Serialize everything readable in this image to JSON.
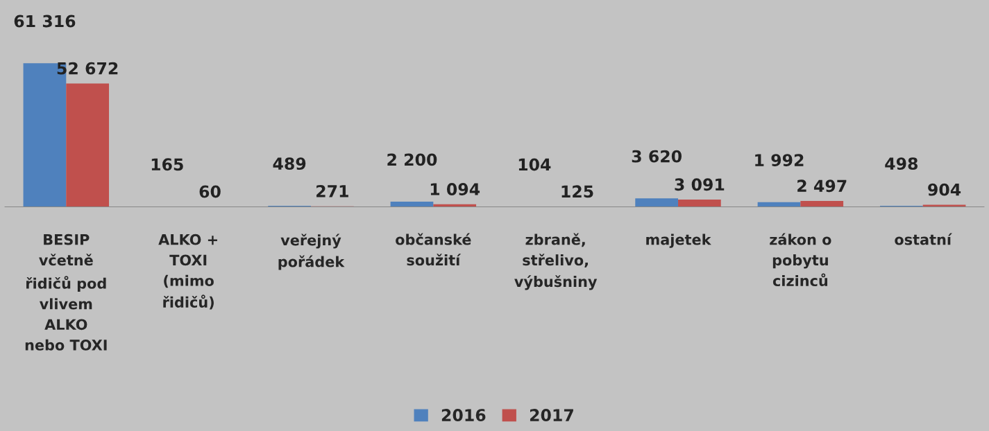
{
  "chart_data": {
    "type": "bar",
    "categories": [
      "BESIP\nvčetně\nřidičů pod\nvlivem\nALKO\nnebo TOXI",
      "ALKO +\nTOXI\n(mimo\nřidičů)",
      "veřejný\npořádek",
      "občanské\nsoužití",
      "zbraně,\nstřelivo,\nvýbušniny",
      "majetek",
      "zákon o\npobytu\ncizinců",
      "ostatní"
    ],
    "series": [
      {
        "name": "2016",
        "color": "#4f81bd",
        "values": [
          61316,
          165,
          489,
          2200,
          104,
          3620,
          1992,
          498
        ],
        "value_labels": [
          "61 316",
          "165",
          "489",
          "2 200",
          "104",
          "3 620",
          "1 992",
          "498"
        ]
      },
      {
        "name": "2017",
        "color": "#c0504d",
        "values": [
          52672,
          60,
          271,
          1094,
          125,
          3091,
          2497,
          904
        ],
        "value_labels": [
          "52 672",
          "60",
          "271",
          "1 094",
          "125",
          "3 091",
          "2 497",
          "904"
        ]
      }
    ],
    "legend": "bottom",
    "grid": false
  }
}
